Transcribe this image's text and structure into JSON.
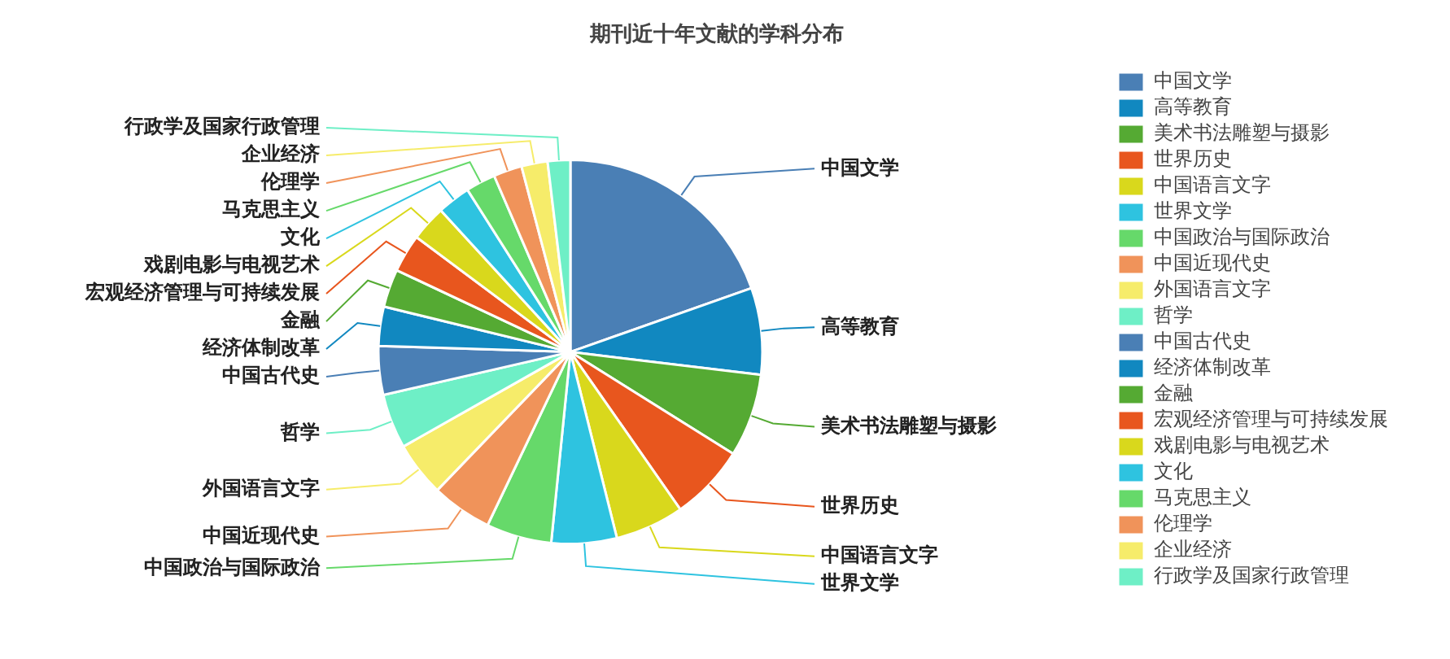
{
  "chart_data": {
    "type": "pie",
    "title": "期刊近十年文献的学科分布",
    "legend": "right",
    "categories": [
      "中国文学",
      "高等教育",
      "美术书法雕塑与摄影",
      "世界历史",
      "中国语言文字",
      "世界文学",
      "中国政治与国际政治",
      "中国近现代史",
      "外国语言文字",
      "哲学",
      "中国古代史",
      "经济体制改革",
      "金融",
      "宏观经济管理与可持续发展",
      "戏剧电影与电视艺术",
      "文化",
      "马克思主义",
      "伦理学",
      "企业经济",
      "行政学及国家行政管理"
    ],
    "values": [
      19.6,
      7.3,
      7.0,
      6.4,
      5.8,
      5.5,
      5.5,
      5.1,
      4.6,
      4.6,
      4.1,
      3.3,
      3.2,
      3.2,
      3.0,
      2.8,
      2.5,
      2.4,
      2.2,
      1.9
    ],
    "colors": [
      "#4a7fb5",
      "#1188c0",
      "#55aa33",
      "#e8561e",
      "#d9d81c",
      "#2ec3e0",
      "#66d96a",
      "#f0935a",
      "#f6ec6a",
      "#6eefc6",
      "#4a7fb5",
      "#1188c0",
      "#55aa33",
      "#e8561e",
      "#d9d81c",
      "#2ec3e0",
      "#66d96a",
      "#f0935a",
      "#f6ec6a",
      "#6eefc6"
    ]
  }
}
